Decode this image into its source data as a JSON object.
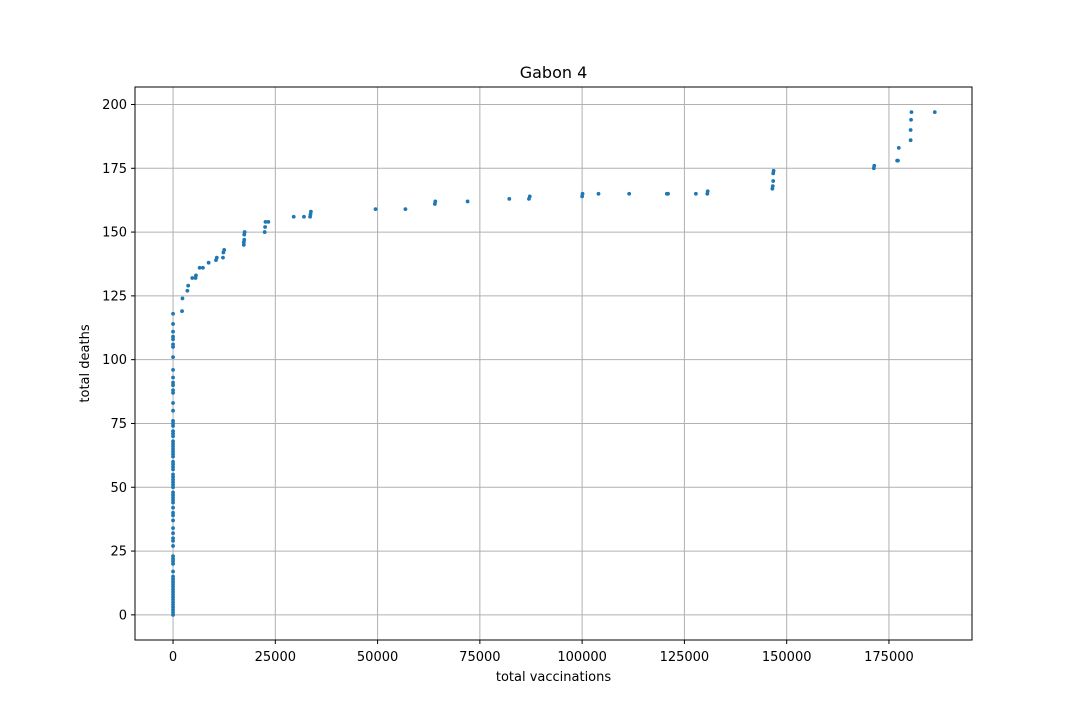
{
  "chart_data": {
    "type": "scatter",
    "title": "Gabon 4",
    "xlabel": "total vaccinations",
    "ylabel": "total deaths",
    "xlim": [
      -9300,
      195300
    ],
    "ylim": [
      -9.85,
      206.85
    ],
    "xticks": [
      0,
      25000,
      50000,
      75000,
      100000,
      125000,
      150000,
      175000
    ],
    "yticks": [
      0,
      25,
      50,
      75,
      100,
      125,
      150,
      175,
      200
    ],
    "grid": true,
    "marker_color": "#1f77b4",
    "series": [
      {
        "points": [
          [
            0,
            0
          ],
          [
            0,
            1
          ],
          [
            0,
            2
          ],
          [
            0,
            3
          ],
          [
            0,
            4
          ],
          [
            0,
            5
          ],
          [
            0,
            6
          ],
          [
            0,
            7
          ],
          [
            0,
            8
          ],
          [
            0,
            9
          ],
          [
            0,
            10
          ],
          [
            0,
            11
          ],
          [
            0,
            12
          ],
          [
            0,
            13
          ],
          [
            0,
            14
          ],
          [
            0,
            15
          ],
          [
            0,
            17
          ],
          [
            0,
            20
          ],
          [
            0,
            21
          ],
          [
            0,
            22
          ],
          [
            0,
            23
          ],
          [
            0,
            27
          ],
          [
            0,
            29
          ],
          [
            0,
            30
          ],
          [
            0,
            32
          ],
          [
            0,
            34
          ],
          [
            0,
            37
          ],
          [
            0,
            39
          ],
          [
            0,
            40
          ],
          [
            0,
            42
          ],
          [
            0,
            44
          ],
          [
            0,
            45
          ],
          [
            0,
            46
          ],
          [
            0,
            47
          ],
          [
            0,
            48
          ],
          [
            0,
            50
          ],
          [
            0,
            51
          ],
          [
            0,
            52
          ],
          [
            0,
            53
          ],
          [
            0,
            54
          ],
          [
            0,
            55
          ],
          [
            0,
            57
          ],
          [
            0,
            58
          ],
          [
            0,
            59
          ],
          [
            0,
            60
          ],
          [
            0,
            62
          ],
          [
            0,
            63
          ],
          [
            0,
            64
          ],
          [
            0,
            65
          ],
          [
            0,
            66
          ],
          [
            0,
            67
          ],
          [
            0,
            68
          ],
          [
            0,
            70
          ],
          [
            0,
            71
          ],
          [
            0,
            72
          ],
          [
            0,
            74
          ],
          [
            0,
            75
          ],
          [
            0,
            76
          ],
          [
            0,
            80
          ],
          [
            0,
            83
          ],
          [
            0,
            87
          ],
          [
            0,
            88
          ],
          [
            0,
            90
          ],
          [
            0,
            91
          ],
          [
            0,
            93
          ],
          [
            0,
            96
          ],
          [
            0,
            101
          ],
          [
            0,
            105
          ],
          [
            0,
            106
          ],
          [
            0,
            108
          ],
          [
            0,
            109
          ],
          [
            0,
            111
          ],
          [
            0,
            114
          ],
          [
            0,
            118
          ],
          [
            2200,
            119
          ],
          [
            2300,
            124
          ],
          [
            3500,
            127
          ],
          [
            3700,
            129
          ],
          [
            4700,
            132
          ],
          [
            5500,
            132
          ],
          [
            5600,
            133
          ],
          [
            6500,
            136
          ],
          [
            7300,
            136
          ],
          [
            8700,
            138
          ],
          [
            10500,
            139
          ],
          [
            10700,
            140
          ],
          [
            12200,
            140
          ],
          [
            12300,
            142
          ],
          [
            12500,
            143
          ],
          [
            17300,
            145
          ],
          [
            17300,
            146
          ],
          [
            17400,
            147
          ],
          [
            17400,
            149
          ],
          [
            17500,
            150
          ],
          [
            22400,
            150
          ],
          [
            22500,
            152
          ],
          [
            22600,
            154
          ],
          [
            23300,
            154
          ],
          [
            29500,
            156
          ],
          [
            32000,
            156
          ],
          [
            33500,
            156
          ],
          [
            33600,
            157
          ],
          [
            33700,
            158
          ],
          [
            49500,
            159
          ],
          [
            56800,
            159
          ],
          [
            64000,
            161
          ],
          [
            64100,
            162
          ],
          [
            72000,
            162
          ],
          [
            82200,
            163
          ],
          [
            87000,
            163
          ],
          [
            87200,
            164
          ],
          [
            100000,
            164
          ],
          [
            100100,
            165
          ],
          [
            104000,
            165
          ],
          [
            111500,
            165
          ],
          [
            120700,
            165
          ],
          [
            121000,
            165
          ],
          [
            127800,
            165
          ],
          [
            130600,
            165
          ],
          [
            130700,
            166
          ],
          [
            146500,
            167
          ],
          [
            146600,
            168
          ],
          [
            146700,
            170
          ],
          [
            146700,
            173
          ],
          [
            146800,
            174
          ],
          [
            171300,
            175
          ],
          [
            171400,
            176
          ],
          [
            177000,
            178
          ],
          [
            177200,
            178
          ],
          [
            177400,
            183
          ],
          [
            180300,
            186
          ],
          [
            180300,
            190
          ],
          [
            180400,
            194
          ],
          [
            180500,
            197
          ],
          [
            186200,
            197
          ]
        ]
      }
    ]
  }
}
